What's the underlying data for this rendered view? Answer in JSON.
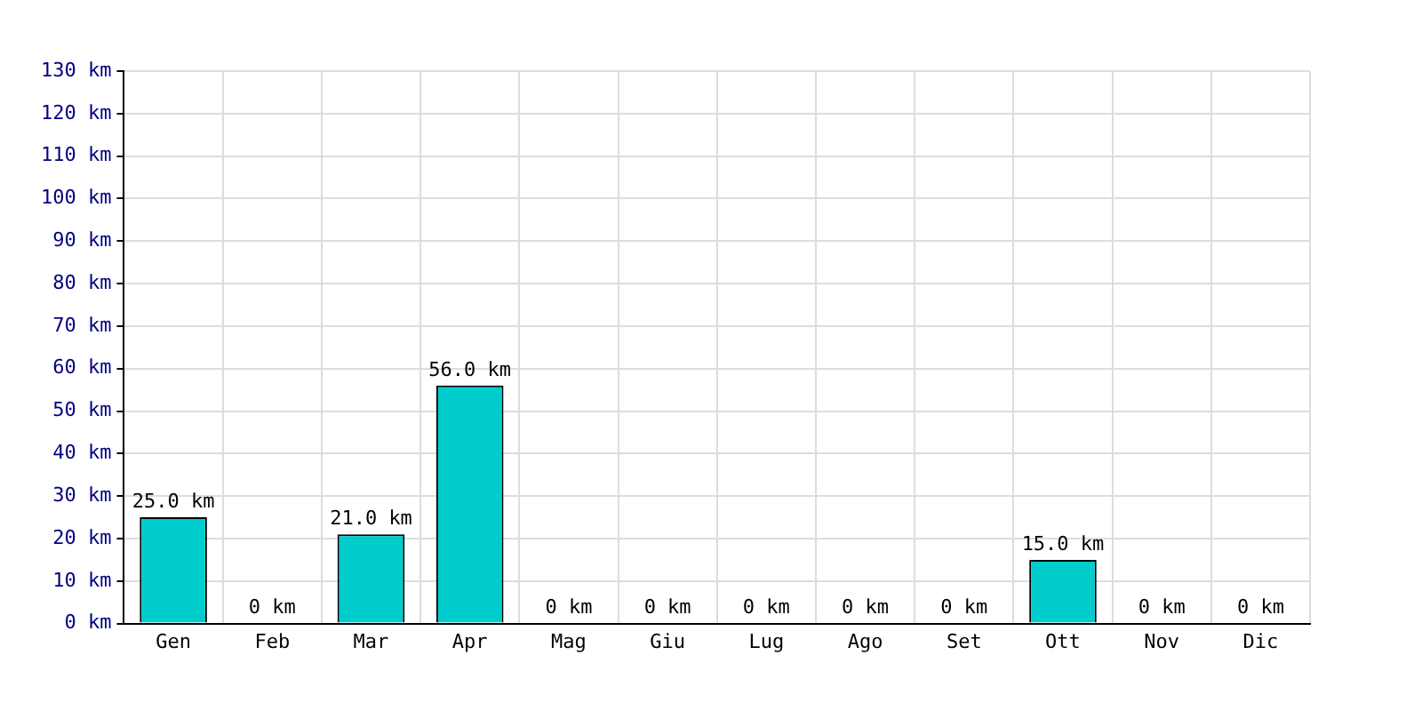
{
  "chart_data": {
    "type": "bar",
    "categories": [
      "Gen",
      "Feb",
      "Mar",
      "Apr",
      "Mag",
      "Giu",
      "Lug",
      "Ago",
      "Set",
      "Ott",
      "Nov",
      "Dic"
    ],
    "values": [
      25,
      0,
      21,
      56,
      0,
      0,
      0,
      0,
      0,
      15,
      0,
      0
    ],
    "value_labels": [
      "25.0 km",
      "0 km",
      "21.0 km",
      "56.0 km",
      "0 km",
      "0 km",
      "0 km",
      "0 km",
      "0 km",
      "15.0 km",
      "0 km",
      "0 km"
    ],
    "color": "#00cccc",
    "ylim": [
      0,
      130
    ],
    "yticks": [
      {
        "value": 0,
        "label": "0 km"
      },
      {
        "value": 10,
        "label": "10 km"
      },
      {
        "value": 20,
        "label": "20 km"
      },
      {
        "value": 30,
        "label": "30 km"
      },
      {
        "value": 40,
        "label": "40 km"
      },
      {
        "value": 50,
        "label": "50 km"
      },
      {
        "value": 60,
        "label": "60 km"
      },
      {
        "value": 70,
        "label": "70 km"
      },
      {
        "value": 80,
        "label": "80 km"
      },
      {
        "value": 90,
        "label": "90 km"
      },
      {
        "value": 100,
        "label": "100 km"
      },
      {
        "value": 110,
        "label": "110 km"
      },
      {
        "value": 120,
        "label": "120 km"
      },
      {
        "value": 130,
        "label": "130 km"
      }
    ],
    "grid": true
  }
}
